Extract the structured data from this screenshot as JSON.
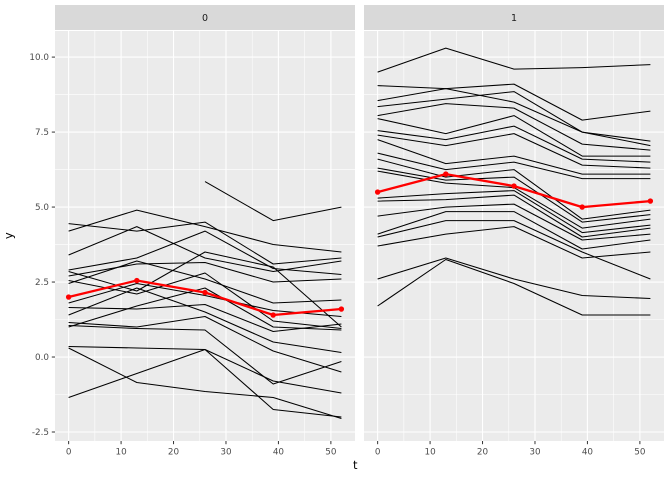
{
  "chart_data": {
    "type": "line",
    "description": "Faceted spaghetti plot of individual trajectories (black) with a mean trajectory (red, with points) per facet",
    "xlabel": "t",
    "ylabel": "y",
    "x": [
      0,
      13,
      26,
      39,
      52
    ],
    "x_tick_values": [
      0,
      10,
      20,
      30,
      40,
      50
    ],
    "x_tick_labels": [
      "0",
      "10",
      "20",
      "30",
      "40",
      "50"
    ],
    "y_tick_values": [
      -2.5,
      0.0,
      2.5,
      5.0,
      7.5,
      10.0
    ],
    "y_tick_labels": [
      "-2.5",
      "0.0",
      "2.5",
      "5.0",
      "7.5",
      "10.0"
    ],
    "x_minor": [
      5,
      15,
      25,
      35,
      45
    ],
    "y_minor": [
      -1.25,
      1.25,
      3.75,
      6.25,
      8.75
    ],
    "xlim": [
      -2.6,
      54.6
    ],
    "ylim": [
      -2.8,
      10.87
    ],
    "grid": true,
    "legend": "none",
    "facets": [
      {
        "label": "0",
        "mean_line": [
          2.0,
          2.55,
          2.15,
          1.4,
          1.6
        ],
        "subject_lines": [
          [
            4.45,
            4.2,
            4.5,
            3.1,
            3.3
          ],
          [
            4.2,
            4.9,
            4.35,
            3.75,
            3.5
          ],
          [
            3.4,
            4.35,
            3.3,
            2.85,
            3.2
          ],
          [
            2.9,
            3.3,
            4.2,
            2.95,
            2.75
          ],
          [
            2.85,
            2.2,
            3.5,
            3.0,
            1.0
          ],
          [
            2.7,
            3.1,
            3.15,
            2.5,
            2.6
          ],
          [
            2.55,
            2.1,
            2.8,
            1.2,
            0.95
          ],
          [
            2.45,
            3.2,
            2.6,
            1.8,
            1.9
          ],
          [
            1.8,
            2.45,
            2.05,
            1.55,
            1.35
          ],
          [
            1.65,
            1.6,
            1.75,
            0.85,
            1.1
          ],
          [
            1.4,
            2.3,
            1.5,
            0.5,
            0.15
          ],
          [
            1.15,
            1.0,
            1.35,
            0.2,
            -0.5
          ],
          [
            1.05,
            0.95,
            0.9,
            -0.9,
            -0.15
          ],
          [
            1.0,
            1.7,
            2.3,
            1.0,
            0.9
          ],
          [
            0.35,
            0.3,
            0.25,
            -0.8,
            -1.2
          ],
          [
            0.3,
            -0.85,
            -1.15,
            -1.35,
            -2.05
          ],
          [
            -1.35,
            -0.55,
            0.25,
            -1.75,
            -2.0
          ],
          [
            null,
            null,
            5.85,
            4.55,
            5.0
          ]
        ]
      },
      {
        "label": "1",
        "mean_line": [
          5.5,
          6.1,
          5.7,
          5.0,
          5.2
        ],
        "subject_lines": [
          [
            9.5,
            10.3,
            9.6,
            9.65,
            9.75
          ],
          [
            9.05,
            8.95,
            9.1,
            7.9,
            8.2
          ],
          [
            8.55,
            8.95,
            8.5,
            7.5,
            7.2
          ],
          [
            8.35,
            8.6,
            8.85,
            7.5,
            7.05
          ],
          [
            8.05,
            8.45,
            8.3,
            7.1,
            6.9
          ],
          [
            7.95,
            7.45,
            8.05,
            6.7,
            6.7
          ],
          [
            7.55,
            7.25,
            7.7,
            6.6,
            6.5
          ],
          [
            7.4,
            7.05,
            7.45,
            6.4,
            6.3
          ],
          [
            7.25,
            6.45,
            6.7,
            6.1,
            6.1
          ],
          [
            6.8,
            6.25,
            6.5,
            5.95,
            5.95
          ],
          [
            6.6,
            6.0,
            6.25,
            4.6,
            4.9
          ],
          [
            6.3,
            5.9,
            6.0,
            4.5,
            4.75
          ],
          [
            6.2,
            5.8,
            5.65,
            4.3,
            4.6
          ],
          [
            5.3,
            5.45,
            5.55,
            4.15,
            4.4
          ],
          [
            5.2,
            5.25,
            5.4,
            4.0,
            4.3
          ],
          [
            4.7,
            5.0,
            5.1,
            3.9,
            4.1
          ],
          [
            4.1,
            4.85,
            4.85,
            3.6,
            3.9
          ],
          [
            4.0,
            4.55,
            4.55,
            3.5,
            2.6
          ],
          [
            3.7,
            4.1,
            4.35,
            3.3,
            3.5
          ],
          [
            2.6,
            3.3,
            2.6,
            2.05,
            1.95
          ],
          [
            1.7,
            3.25,
            2.45,
            1.4,
            1.4
          ]
        ]
      }
    ],
    "colors": {
      "panel_bg": "#EBEBEB",
      "strip_bg": "#D9D9D9",
      "grid": "#FFFFFF",
      "subject": "#000000",
      "mean": "#FF0000",
      "tick_mark": "#333333",
      "tick_text": "#4D4D4D",
      "strip_text": "#1A1A1A"
    }
  }
}
